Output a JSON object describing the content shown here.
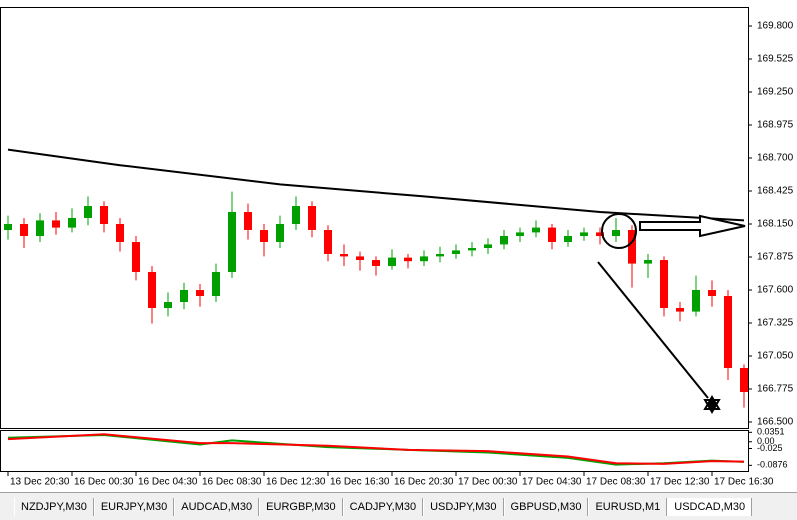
{
  "chart_data": {
    "type": "candlestick",
    "categories": [
      "13 Dec 20:30",
      null,
      null,
      null,
      "16 Dec 00:30",
      null,
      null,
      null,
      "16 Dec 04:30",
      null,
      null,
      null,
      "16 Dec 08:30",
      null,
      null,
      null,
      "16 Dec 12:30",
      null,
      null,
      null,
      "16 Dec 16:30",
      null,
      null,
      null,
      "16 Dec 20:30",
      null,
      null,
      null,
      "17 Dec 00:30",
      null,
      null,
      null,
      "17 Dec 04:30",
      null,
      null,
      null,
      "17 Dec 08:30",
      null,
      null,
      null,
      "17 Dec 12:30",
      null,
      null,
      null,
      "17 Dec 16:30",
      null,
      null
    ],
    "open": [
      168.1,
      168.15,
      168.05,
      168.18,
      168.12,
      168.2,
      168.3,
      168.15,
      168.0,
      167.75,
      167.45,
      167.5,
      167.6,
      167.55,
      167.75,
      168.25,
      168.1,
      168.0,
      168.15,
      168.3,
      168.1,
      167.9,
      167.88,
      167.85,
      167.8,
      167.87,
      167.84,
      167.88,
      167.9,
      167.93,
      167.95,
      167.98,
      168.05,
      168.08,
      168.12,
      168.0,
      168.05,
      168.08,
      168.05,
      168.1,
      167.82,
      167.85,
      167.45,
      167.42,
      167.6,
      167.55,
      166.95
    ],
    "high": [
      168.22,
      168.2,
      168.24,
      168.25,
      168.28,
      168.38,
      168.34,
      168.2,
      168.05,
      167.8,
      167.58,
      167.66,
      167.65,
      167.82,
      168.42,
      168.32,
      168.15,
      168.22,
      168.38,
      168.34,
      168.14,
      167.98,
      167.92,
      167.88,
      167.94,
      167.9,
      167.93,
      167.96,
      167.98,
      168.0,
      168.03,
      168.1,
      168.12,
      168.18,
      168.15,
      168.1,
      168.12,
      168.12,
      168.2,
      168.14,
      167.9,
      167.88,
      167.5,
      167.72,
      167.68,
      167.6,
      166.98
    ],
    "low": [
      168.02,
      167.95,
      168.0,
      168.06,
      168.08,
      168.14,
      168.08,
      167.92,
      167.68,
      167.32,
      167.38,
      167.44,
      167.46,
      167.5,
      167.7,
      168.02,
      167.88,
      167.95,
      168.1,
      168.04,
      167.84,
      167.8,
      167.76,
      167.72,
      167.77,
      167.78,
      167.8,
      167.83,
      167.86,
      167.88,
      167.9,
      167.94,
      168.0,
      168.04,
      167.94,
      167.96,
      168.01,
      167.98,
      168.0,
      167.62,
      167.7,
      167.38,
      167.34,
      167.38,
      167.46,
      166.85,
      166.62
    ],
    "close": [
      168.15,
      168.05,
      168.18,
      168.12,
      168.2,
      168.3,
      168.15,
      168.0,
      167.75,
      167.45,
      167.5,
      167.6,
      167.55,
      167.75,
      168.25,
      168.1,
      168.0,
      168.15,
      168.3,
      168.1,
      167.9,
      167.88,
      167.85,
      167.8,
      167.87,
      167.84,
      167.88,
      167.9,
      167.93,
      167.95,
      167.98,
      168.05,
      168.08,
      168.12,
      168.0,
      168.05,
      168.08,
      168.05,
      168.1,
      167.82,
      167.85,
      167.45,
      167.42,
      167.6,
      167.55,
      166.95,
      166.75
    ],
    "up_color": "#00a000",
    "down_color": "#ff0000",
    "ylim": [
      166.45,
      169.95
    ],
    "yticks": [
      {
        "value": 169.8,
        "label": "169.800"
      },
      169.525,
      {
        "value": 169.25,
        "label": "169.250"
      },
      168.975,
      {
        "value": 168.7,
        "label": "168.700"
      },
      168.425,
      {
        "value": 168.15,
        "label": "168.150"
      },
      167.875,
      {
        "value": 167.6,
        "label": "167.600"
      },
      167.325,
      {
        "value": 167.05,
        "label": "167.050"
      },
      166.775,
      {
        "value": 166.5,
        "label": "166.500"
      }
    ],
    "ma": {
      "color": "#000000",
      "x": [
        0,
        7,
        17,
        26,
        37,
        46
      ],
      "values": [
        168.77,
        168.64,
        168.48,
        168.38,
        168.25,
        168.18
      ]
    },
    "indicator": {
      "ylim": [
        -0.105,
        0.04
      ],
      "yticks": [
        {
          "value": 0.0351,
          "label": "0.0351"
        },
        {
          "value": 0,
          "label": "0.00"
        },
        -0.025,
        -0.0876
      ],
      "series": [
        {
          "color": "#00a000",
          "x": [
            0,
            6,
            12,
            14,
            20,
            25,
            30,
            35,
            38,
            41,
            44,
            46
          ],
          "values": [
            0.015,
            0.025,
            -0.01,
            0.005,
            -0.02,
            -0.03,
            -0.04,
            -0.06,
            -0.085,
            -0.08,
            -0.07,
            -0.075
          ]
        },
        {
          "color": "#ff0000",
          "x": [
            0,
            6,
            12,
            14,
            20,
            25,
            30,
            35,
            38,
            41,
            44,
            46
          ],
          "values": [
            0.01,
            0.028,
            -0.005,
            -0.005,
            -0.015,
            -0.03,
            -0.035,
            -0.055,
            -0.08,
            -0.082,
            -0.072,
            -0.074
          ]
        }
      ]
    }
  },
  "tabs": [
    "NZDJPY,M30",
    "EURJPY,M30",
    "AUDCAD,M30",
    "EURGBP,M30",
    "CADJPY,M30",
    "USDJPY,M30",
    "GBPUSD,M30",
    "EURUSD,M1",
    "USDCAD,M30"
  ]
}
